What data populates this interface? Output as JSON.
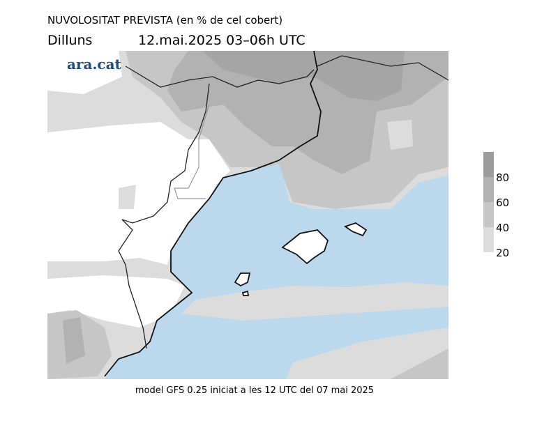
{
  "header": {
    "title": "NUVOLOSITAT PREVISTA (en % de cel cobert)",
    "day": "Dilluns",
    "datetime": "12.mai.2025 03–06h UTC"
  },
  "logo": "ara.cat",
  "footer": "model GFS 0.25 iniciat a les 12 UTC del 07 mai 2025",
  "legend": {
    "levels": [
      20,
      40,
      60,
      80
    ],
    "lim": [
      20,
      100
    ],
    "colors": [
      "#dcdcdc",
      "#c6c6c6",
      "#b2b2b2",
      "#9c9c9c"
    ]
  }
}
